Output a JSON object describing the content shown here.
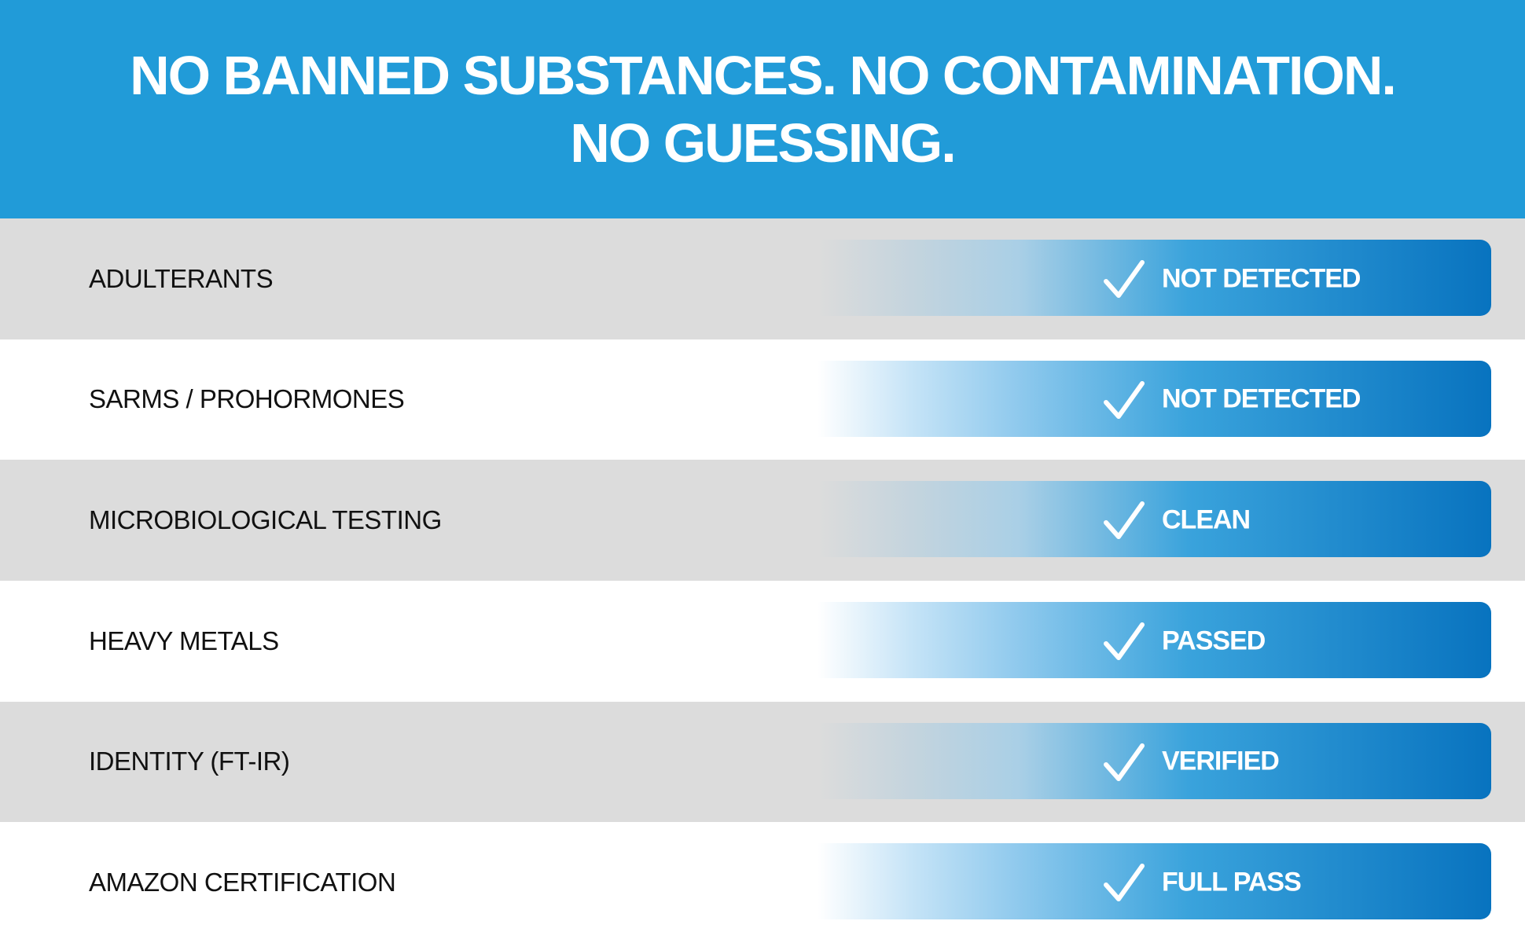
{
  "header": {
    "lines": [
      "NO BANNED SUBSTANCES. NO CONTAMINATION.",
      "NO GUESSING."
    ]
  },
  "rows": [
    {
      "label": "ADULTERANTS",
      "result": "NOT DETECTED"
    },
    {
      "label": "SARMS / PROHORMONES",
      "result": "NOT DETECTED"
    },
    {
      "label": "MICROBIOLOGICAL TESTING",
      "result": "CLEAN"
    },
    {
      "label": "HEAVY METALS",
      "result": "PASSED"
    },
    {
      "label": "IDENTITY (FT-IR)",
      "result": "VERIFIED"
    },
    {
      "label": "AMAZON CERTIFICATION",
      "result": "FULL PASS"
    }
  ]
}
